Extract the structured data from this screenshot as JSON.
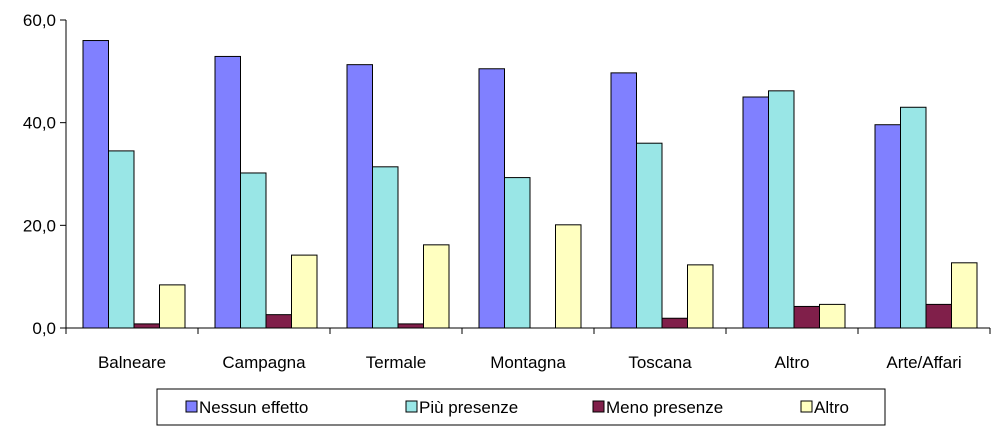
{
  "chart_data": {
    "type": "bar",
    "categories": [
      "Balneare",
      "Campagna",
      "Termale",
      "Montagna",
      "Toscana",
      "Altro",
      "Arte/Affari"
    ],
    "series": [
      {
        "name": "Nessun effetto",
        "color": "#8080ff",
        "values": [
          56.0,
          52.9,
          51.3,
          50.5,
          49.7,
          45.0,
          39.6
        ]
      },
      {
        "name": "Più presenze",
        "color": "#99e6e6",
        "values": [
          34.5,
          30.2,
          31.4,
          29.3,
          36.0,
          46.2,
          43.0
        ]
      },
      {
        "name": "Meno presenze",
        "color": "#801f4a",
        "values": [
          0.8,
          2.6,
          0.8,
          0.0,
          1.9,
          4.2,
          4.6
        ]
      },
      {
        "name": "Altro",
        "color": "#ffffc0",
        "values": [
          8.4,
          14.2,
          16.2,
          20.1,
          12.3,
          4.6,
          12.7
        ]
      }
    ],
    "y_ticks": [
      "0,0",
      "20,0",
      "40,0",
      "60,0"
    ],
    "ylim": [
      0,
      60
    ],
    "title": "",
    "xlabel": "",
    "ylabel": "",
    "grid": false,
    "legend_position": "bottom"
  }
}
